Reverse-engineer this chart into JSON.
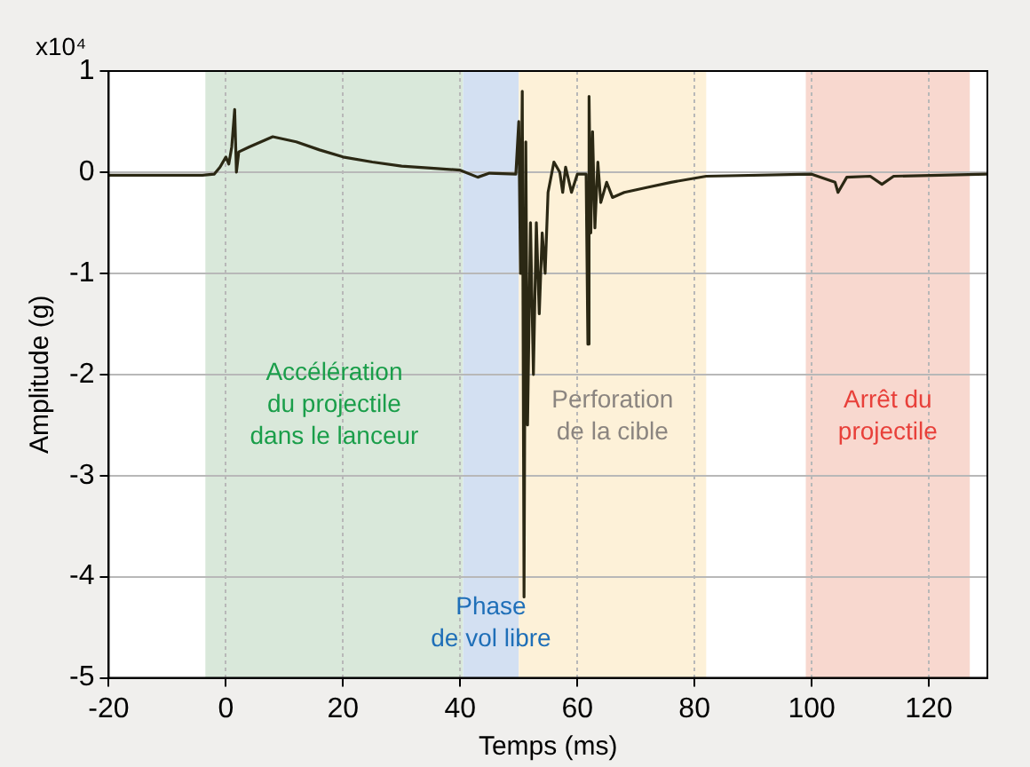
{
  "chart_data": {
    "type": "line",
    "xlabel": "Temps (ms)",
    "ylabel": "Amplitude (g)",
    "annotations": [
      "x10⁴"
    ],
    "x": [
      -20,
      -4,
      -2,
      -1,
      0,
      0.5,
      1,
      1.5,
      1.8,
      2.2,
      4,
      8,
      12,
      16,
      20,
      25,
      30,
      35,
      40,
      43,
      45,
      49.5,
      50,
      50.3,
      50.6,
      50.9,
      51.2,
      51.5,
      52,
      52.5,
      53,
      53.5,
      54,
      54.5,
      55,
      56,
      57,
      57.5,
      58,
      59,
      60,
      61.5,
      61.8,
      62,
      62.3,
      62.6,
      63,
      63.5,
      64,
      65,
      66,
      68,
      72,
      76,
      82,
      100,
      104,
      104.5,
      106,
      110,
      112,
      114,
      130
    ],
    "series": [
      {
        "color": "#2b2814",
        "values": [
          -0.03,
          -0.03,
          -0.02,
          0.05,
          0.15,
          0.08,
          0.25,
          0.62,
          0.0,
          0.2,
          0.25,
          0.35,
          0.3,
          0.22,
          0.15,
          0.1,
          0.06,
          0.04,
          0.02,
          -0.05,
          -0.01,
          -0.02,
          0.5,
          -1.0,
          0.8,
          -4.2,
          0.3,
          -2.5,
          -0.5,
          -2.0,
          -0.5,
          -1.4,
          -0.6,
          -1.0,
          -0.2,
          0.1,
          0.0,
          -0.2,
          0.05,
          -0.2,
          -0.02,
          -0.02,
          -1.7,
          0.75,
          -0.6,
          0.4,
          -0.55,
          0.1,
          -0.3,
          -0.1,
          -0.25,
          -0.2,
          -0.15,
          -0.1,
          -0.04,
          -0.02,
          -0.1,
          -0.2,
          -0.05,
          -0.04,
          -0.12,
          -0.04,
          -0.02
        ]
      }
    ],
    "bands": [
      {
        "axis": "x",
        "from": -3.5,
        "to": 40.5,
        "label": "Accélération\ndu projectile\ndans le lanceur",
        "color": "#d9e8da"
      },
      {
        "axis": "x",
        "from": 40.5,
        "to": 50,
        "label": "Phase\nde vol libre",
        "color": "#d3e0f2"
      },
      {
        "axis": "x",
        "from": 50,
        "to": 82,
        "label": "Perforation\nde la cible",
        "color": "#fdf1d8"
      },
      {
        "axis": "x",
        "from": 99,
        "to": 127,
        "label": "Arrêt du\nprojectile",
        "color": "#f8d8cf"
      }
    ],
    "xlim": [
      -20,
      130
    ],
    "xticks": [
      -20,
      0,
      20,
      40,
      60,
      80,
      100,
      120
    ],
    "ylim": [
      -5,
      1
    ],
    "yticks": [
      -5,
      -4,
      -3,
      -2,
      -1,
      0,
      1
    ],
    "grid": true,
    "marker": "none",
    "line_style": "solid",
    "legend": false
  }
}
